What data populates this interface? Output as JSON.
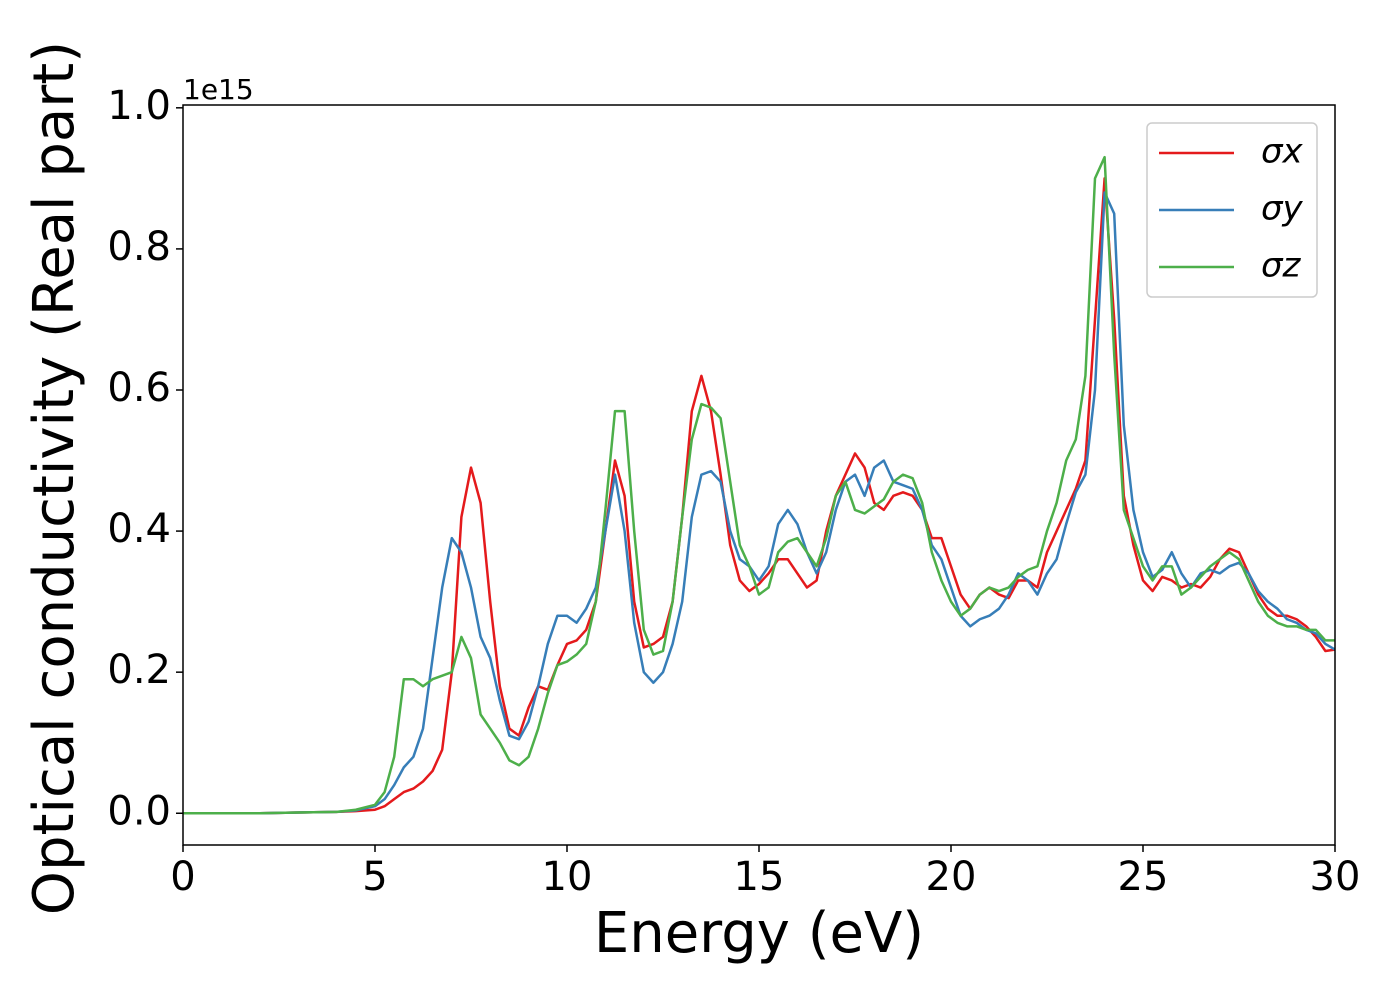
{
  "chart_data": {
    "type": "line",
    "xlabel": "Energy (eV)",
    "ylabel": "Optical conductivity (Real part)",
    "y_offset_label": "1e15",
    "x": [
      0,
      1,
      2,
      3,
      4,
      4.5,
      5,
      5.25,
      5.5,
      5.75,
      6,
      6.25,
      6.5,
      6.75,
      7,
      7.25,
      7.5,
      7.75,
      8,
      8.25,
      8.5,
      8.75,
      9,
      9.25,
      9.5,
      9.75,
      10,
      10.25,
      10.5,
      10.75,
      11,
      11.25,
      11.5,
      11.75,
      12,
      12.25,
      12.5,
      12.75,
      13,
      13.25,
      13.5,
      13.75,
      14,
      14.25,
      14.5,
      14.75,
      15,
      15.25,
      15.5,
      15.75,
      16,
      16.25,
      16.5,
      16.75,
      17,
      17.25,
      17.5,
      17.75,
      18,
      18.25,
      18.5,
      18.75,
      19,
      19.25,
      19.5,
      19.75,
      20,
      20.25,
      20.5,
      20.75,
      21,
      21.25,
      21.5,
      21.75,
      22,
      22.25,
      22.5,
      22.75,
      23,
      23.25,
      23.5,
      23.75,
      24,
      24.25,
      24.5,
      24.75,
      25,
      25.25,
      25.5,
      25.75,
      26,
      26.25,
      26.5,
      26.75,
      27,
      27.25,
      27.5,
      27.75,
      28,
      28.25,
      28.5,
      28.75,
      29,
      29.25,
      29.5,
      29.75,
      30
    ],
    "series": [
      {
        "name": "σx",
        "color": "#e41a1c",
        "values": [
          0,
          0,
          0,
          0.001,
          0.002,
          0.003,
          0.005,
          0.01,
          0.02,
          0.03,
          0.035,
          0.045,
          0.06,
          0.09,
          0.2,
          0.42,
          0.49,
          0.44,
          0.3,
          0.18,
          0.12,
          0.11,
          0.15,
          0.18,
          0.175,
          0.21,
          0.24,
          0.245,
          0.26,
          0.3,
          0.4,
          0.5,
          0.45,
          0.3,
          0.235,
          0.24,
          0.25,
          0.3,
          0.42,
          0.57,
          0.62,
          0.57,
          0.48,
          0.38,
          0.33,
          0.315,
          0.325,
          0.34,
          0.36,
          0.36,
          0.34,
          0.32,
          0.33,
          0.4,
          0.45,
          0.48,
          0.51,
          0.49,
          0.44,
          0.43,
          0.45,
          0.455,
          0.45,
          0.43,
          0.39,
          0.39,
          0.35,
          0.31,
          0.29,
          0.31,
          0.32,
          0.31,
          0.305,
          0.33,
          0.33,
          0.32,
          0.37,
          0.4,
          0.43,
          0.46,
          0.5,
          0.7,
          0.9,
          0.7,
          0.45,
          0.38,
          0.33,
          0.315,
          0.335,
          0.33,
          0.32,
          0.325,
          0.32,
          0.335,
          0.36,
          0.375,
          0.37,
          0.34,
          0.31,
          0.29,
          0.28,
          0.28,
          0.275,
          0.265,
          0.25,
          0.23,
          0.232
        ]
      },
      {
        "name": "σy",
        "color": "#377eb8",
        "values": [
          0,
          0,
          0,
          0.001,
          0.002,
          0.004,
          0.01,
          0.02,
          0.04,
          0.065,
          0.08,
          0.12,
          0.22,
          0.32,
          0.39,
          0.37,
          0.32,
          0.25,
          0.22,
          0.16,
          0.11,
          0.105,
          0.13,
          0.18,
          0.24,
          0.28,
          0.28,
          0.27,
          0.29,
          0.32,
          0.4,
          0.48,
          0.4,
          0.27,
          0.2,
          0.185,
          0.2,
          0.24,
          0.3,
          0.42,
          0.48,
          0.485,
          0.47,
          0.4,
          0.36,
          0.35,
          0.33,
          0.35,
          0.41,
          0.43,
          0.41,
          0.37,
          0.34,
          0.37,
          0.43,
          0.47,
          0.48,
          0.45,
          0.49,
          0.5,
          0.47,
          0.465,
          0.46,
          0.43,
          0.38,
          0.36,
          0.32,
          0.28,
          0.265,
          0.275,
          0.28,
          0.29,
          0.31,
          0.34,
          0.33,
          0.31,
          0.34,
          0.36,
          0.41,
          0.455,
          0.48,
          0.6,
          0.88,
          0.85,
          0.55,
          0.43,
          0.37,
          0.335,
          0.345,
          0.37,
          0.34,
          0.32,
          0.34,
          0.345,
          0.34,
          0.35,
          0.355,
          0.34,
          0.315,
          0.3,
          0.29,
          0.275,
          0.27,
          0.26,
          0.255,
          0.24,
          0.232
        ]
      },
      {
        "name": "σz",
        "color": "#4daf4a",
        "values": [
          0,
          0,
          0,
          0.001,
          0.002,
          0.005,
          0.012,
          0.03,
          0.08,
          0.19,
          0.19,
          0.18,
          0.19,
          0.195,
          0.2,
          0.25,
          0.22,
          0.14,
          0.12,
          0.1,
          0.075,
          0.068,
          0.08,
          0.12,
          0.17,
          0.21,
          0.215,
          0.225,
          0.24,
          0.3,
          0.43,
          0.57,
          0.57,
          0.4,
          0.26,
          0.225,
          0.23,
          0.3,
          0.42,
          0.53,
          0.58,
          0.575,
          0.56,
          0.47,
          0.38,
          0.35,
          0.31,
          0.32,
          0.37,
          0.385,
          0.39,
          0.37,
          0.35,
          0.39,
          0.45,
          0.47,
          0.43,
          0.425,
          0.435,
          0.445,
          0.47,
          0.48,
          0.475,
          0.44,
          0.37,
          0.33,
          0.3,
          0.28,
          0.29,
          0.31,
          0.32,
          0.315,
          0.32,
          0.335,
          0.345,
          0.35,
          0.4,
          0.44,
          0.5,
          0.53,
          0.62,
          0.9,
          0.93,
          0.65,
          0.43,
          0.39,
          0.35,
          0.33,
          0.35,
          0.35,
          0.31,
          0.32,
          0.335,
          0.35,
          0.36,
          0.37,
          0.36,
          0.33,
          0.3,
          0.28,
          0.27,
          0.265,
          0.265,
          0.26,
          0.26,
          0.245,
          0.245
        ]
      }
    ],
    "xlim": [
      0,
      30
    ],
    "xticks": [
      0,
      5,
      10,
      15,
      20,
      25,
      30
    ],
    "ylim": [
      -0.045,
      1.004
    ],
    "yticks": [
      {
        "value": 0,
        "label": "0.0"
      },
      0.2,
      0.4,
      0.6,
      0.8,
      {
        "value": 1,
        "label": "1.0"
      }
    ],
    "grid": false,
    "legend": "upper right"
  }
}
